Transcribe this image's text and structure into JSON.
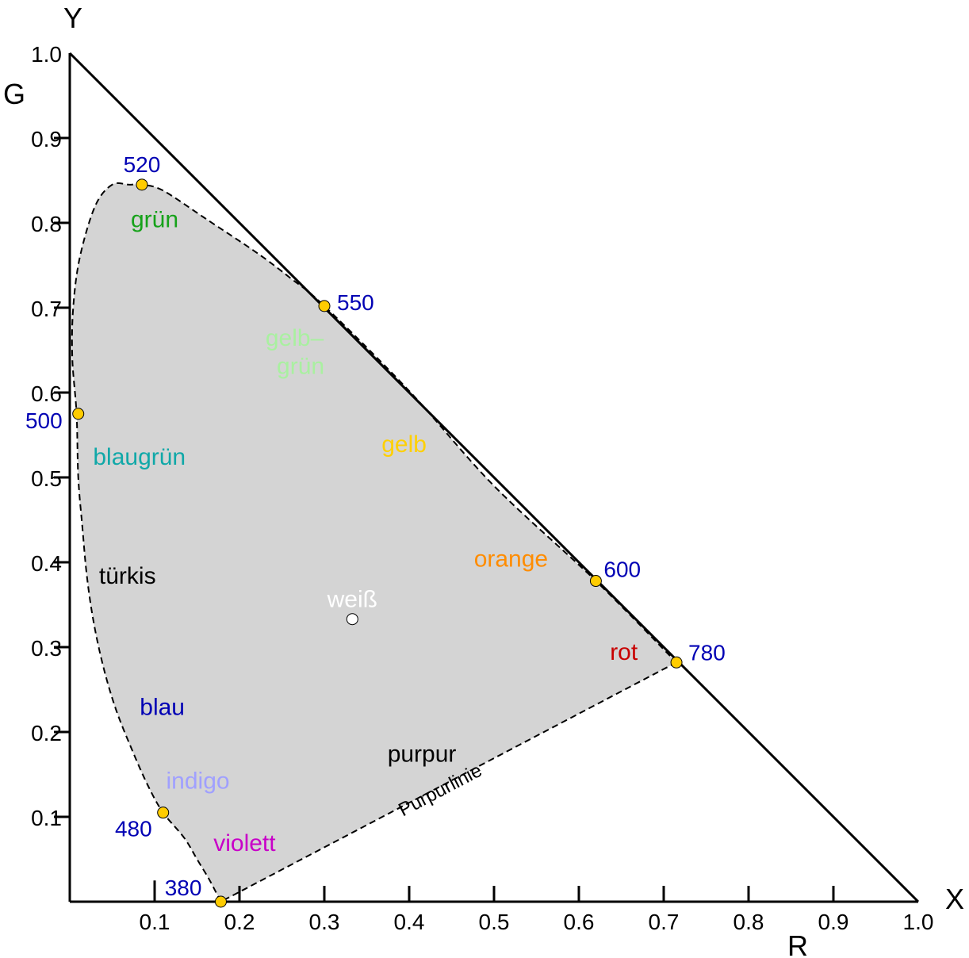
{
  "chart_data": {
    "type": "scatter",
    "axis_letters": {
      "x": "X",
      "y": "Y",
      "r": "R",
      "g": "G"
    },
    "xlim": [
      0,
      1.0
    ],
    "ylim": [
      0,
      1.0
    ],
    "x_ticks": [
      {
        "value": 0.1,
        "label": "0.1"
      },
      {
        "value": 0.2,
        "label": "0.2"
      },
      {
        "value": 0.3,
        "label": "0.3"
      },
      {
        "value": 0.4,
        "label": "0.4"
      },
      {
        "value": 0.5,
        "label": "0.5"
      },
      {
        "value": 0.6,
        "label": "0.6"
      },
      {
        "value": 0.7,
        "label": "0.7"
      },
      {
        "value": 0.8,
        "label": "0.8"
      },
      {
        "value": 0.9,
        "label": "0.9"
      },
      {
        "value": 1.0,
        "label": "1.0"
      }
    ],
    "y_ticks": [
      {
        "value": 0.1,
        "label": "0.1"
      },
      {
        "value": 0.2,
        "label": "0.2"
      },
      {
        "value": 0.3,
        "label": "0.3"
      },
      {
        "value": 0.4,
        "label": "0.4"
      },
      {
        "value": 0.5,
        "label": "0.5"
      },
      {
        "value": 0.6,
        "label": "0.6"
      },
      {
        "value": 0.7,
        "label": "0.7"
      },
      {
        "value": 0.8,
        "label": "0.8"
      },
      {
        "value": 0.9,
        "label": "0.9"
      },
      {
        "value": 1.0,
        "label": "1.0"
      }
    ],
    "boundary_line": {
      "from": [
        0,
        1.0
      ],
      "to": [
        1.0,
        0
      ]
    },
    "spectral_locus": [
      [
        0.178,
        0.0
      ],
      [
        0.165,
        0.025
      ],
      [
        0.15,
        0.05
      ],
      [
        0.135,
        0.075
      ],
      [
        0.11,
        0.105
      ],
      [
        0.093,
        0.135
      ],
      [
        0.075,
        0.175
      ],
      [
        0.055,
        0.225
      ],
      [
        0.04,
        0.275
      ],
      [
        0.028,
        0.33
      ],
      [
        0.02,
        0.385
      ],
      [
        0.015,
        0.44
      ],
      [
        0.01,
        0.5
      ],
      [
        0.008,
        0.575
      ],
      [
        0.003,
        0.64
      ],
      [
        0.004,
        0.7
      ],
      [
        0.012,
        0.76
      ],
      [
        0.03,
        0.82
      ],
      [
        0.05,
        0.845
      ],
      [
        0.07,
        0.845
      ],
      [
        0.085,
        0.845
      ],
      [
        0.11,
        0.838
      ],
      [
        0.16,
        0.805
      ],
      [
        0.22,
        0.765
      ],
      [
        0.26,
        0.735
      ],
      [
        0.3,
        0.702
      ],
      [
        0.4,
        0.602
      ],
      [
        0.5,
        0.49
      ],
      [
        0.62,
        0.378
      ],
      [
        0.715,
        0.282
      ]
    ],
    "purple_line": {
      "from": [
        0.715,
        0.282
      ],
      "to": [
        0.178,
        0.0
      ],
      "label": "Purpurlinie"
    },
    "wavelength_points": [
      {
        "label": "520",
        "x": 0.085,
        "y": 0.845,
        "color": "#0000b4"
      },
      {
        "label": "550",
        "x": 0.3,
        "y": 0.702,
        "color": "#0000b4"
      },
      {
        "label": "500",
        "x": 0.01,
        "y": 0.575,
        "color": "#0000b4"
      },
      {
        "label": "600",
        "x": 0.62,
        "y": 0.378,
        "color": "#0000b4"
      },
      {
        "label": "780",
        "x": 0.715,
        "y": 0.282,
        "color": "#0000b4"
      },
      {
        "label": "480",
        "x": 0.11,
        "y": 0.105,
        "color": "#0000b4"
      },
      {
        "label": "380",
        "x": 0.178,
        "y": 0.0,
        "color": "#0000b4"
      }
    ],
    "white_point": {
      "label": "weiß",
      "x": 0.333,
      "y": 0.333
    },
    "color_regions": [
      {
        "label": "grün",
        "x": 0.1,
        "y": 0.795,
        "color": "#16a21a"
      },
      {
        "label": "gelb–",
        "x": 0.265,
        "y": 0.655,
        "color": "#a9f0a0"
      },
      {
        "label": "grün",
        "x": 0.272,
        "y": 0.622,
        "color": "#a9f0a0"
      },
      {
        "label": "blaugrün",
        "x": 0.082,
        "y": 0.515,
        "color": "#10a8a8"
      },
      {
        "label": "gelb",
        "x": 0.394,
        "y": 0.53,
        "color": "#ffd000"
      },
      {
        "label": "orange",
        "x": 0.52,
        "y": 0.395,
        "color": "#ff8c00"
      },
      {
        "label": "türkis",
        "x": 0.068,
        "y": 0.375,
        "color": "#000000"
      },
      {
        "label": "rot",
        "x": 0.653,
        "y": 0.285,
        "color": "#c80000"
      },
      {
        "label": "blau",
        "x": 0.109,
        "y": 0.22,
        "color": "#0000b4"
      },
      {
        "label": "purpur",
        "x": 0.415,
        "y": 0.165,
        "color": "#000000"
      },
      {
        "label": "indigo",
        "x": 0.151,
        "y": 0.133,
        "color": "#a0a0ff"
      },
      {
        "label": "violett",
        "x": 0.206,
        "y": 0.06,
        "color": "#c800c8"
      }
    ],
    "colors": {
      "fill": "#d4d4d4",
      "marker": "#ffcc00",
      "wavelength_text": "#0000b4",
      "white_text": "#ffffff"
    }
  }
}
